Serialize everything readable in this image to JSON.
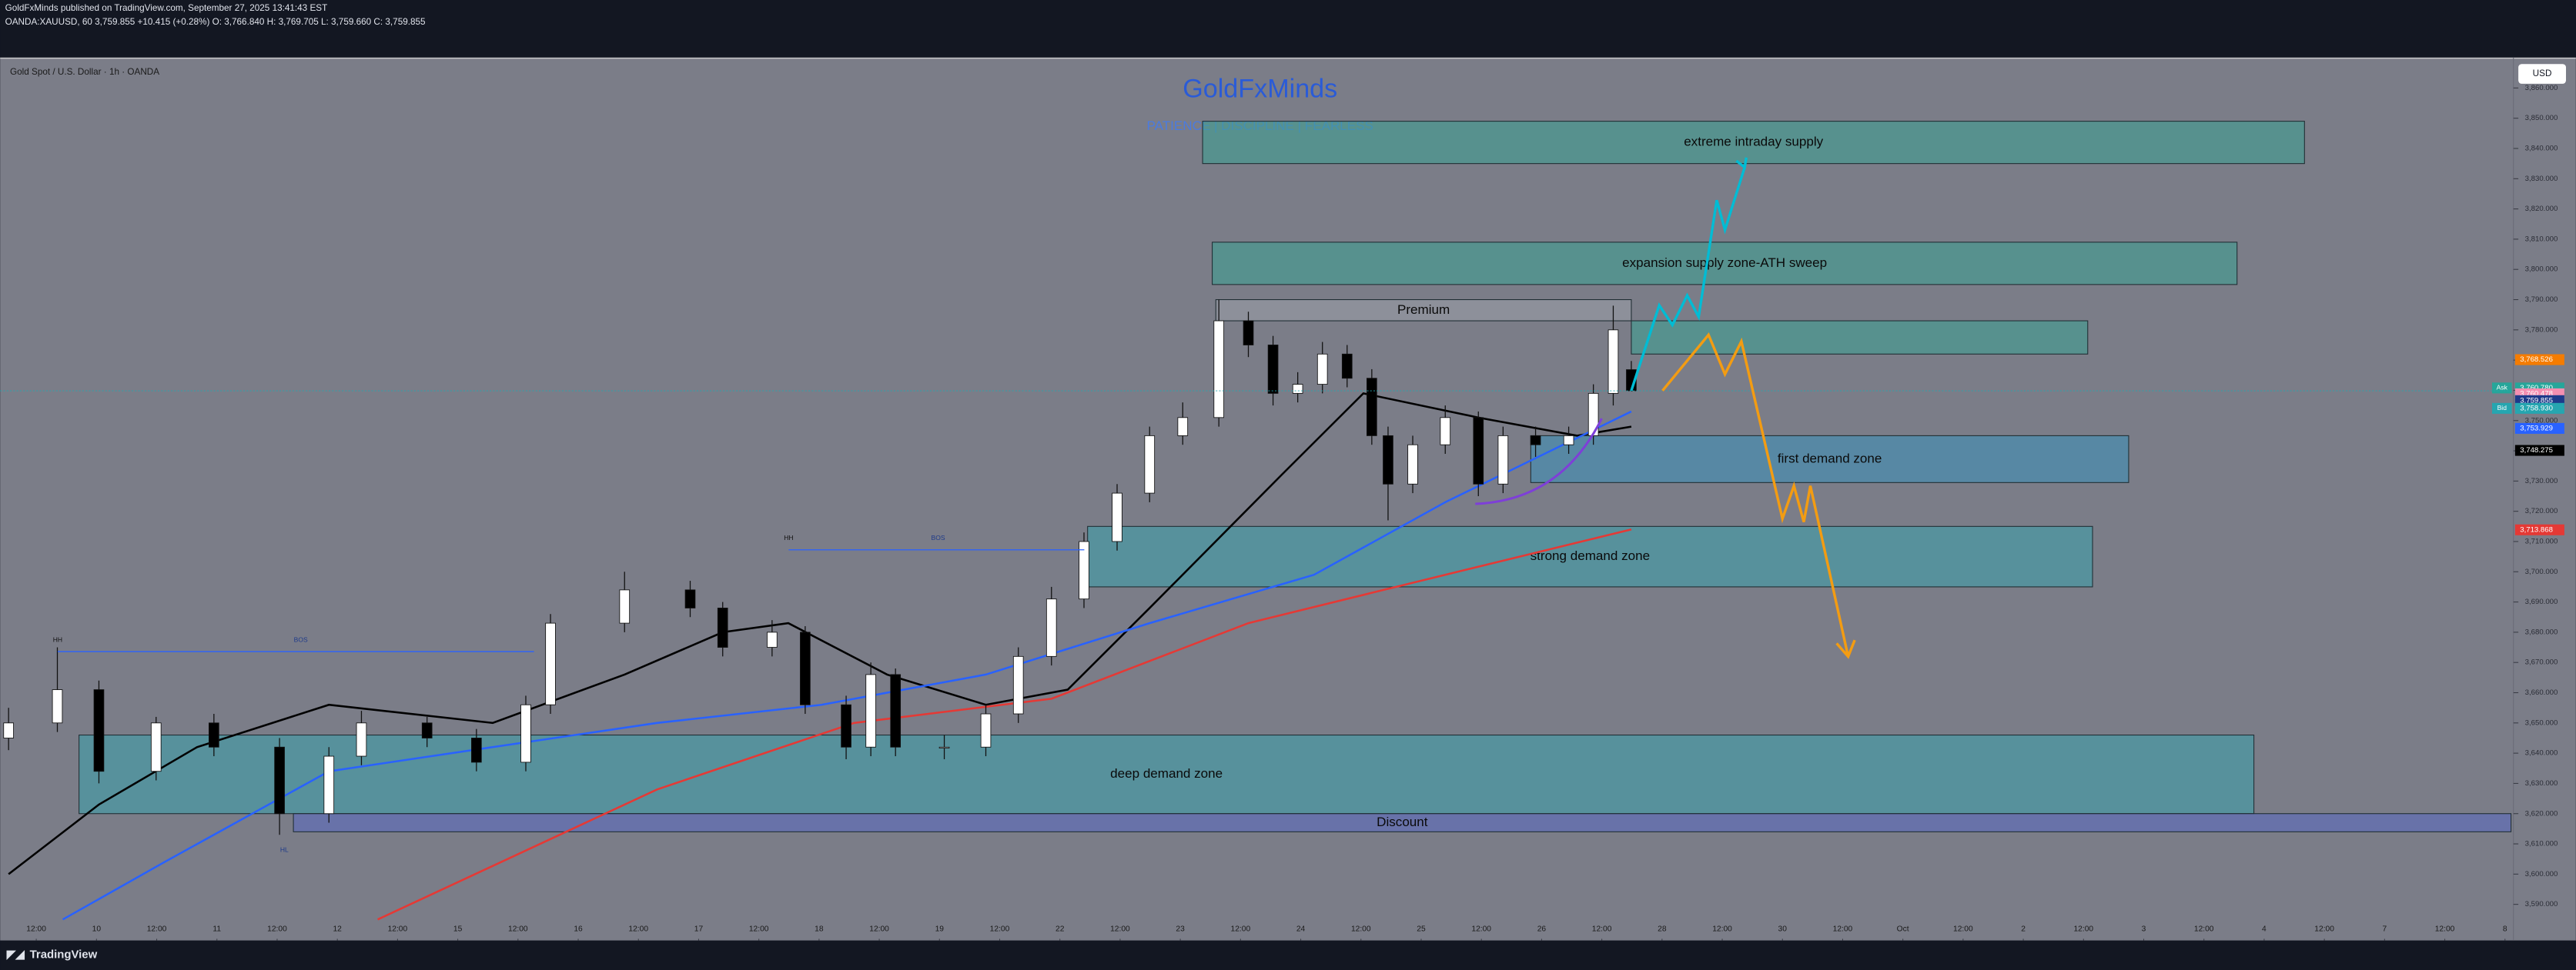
{
  "header": {
    "publisher": "GoldFxMinds published on TradingView.com, September 27, 2025 13:41:43 EST",
    "quote": "OANDA:XAUUSD, 60  3,759.855  +10.415 (+0.28%)  O: 3,766.840  H: 3,769.705  L: 3,759.660  C: 3,759.855",
    "symbol": "Gold Spot / U.S. Dollar · 1h · OANDA",
    "currency": "USD"
  },
  "footer": {
    "brand": "TradingView"
  },
  "chart_data": {
    "type": "candlestick",
    "title": "GoldFxMinds",
    "subtitle": "PATIENCE  |  DISCIPLINE  |  FEARLESS",
    "x": [
      -0.46,
      0.35,
      1.04,
      1.99,
      2.95,
      4.04,
      4.86,
      5.4,
      6.49,
      7.31,
      8.13,
      8.54,
      9.77,
      10.86,
      11.4,
      12.22,
      12.77,
      13.45,
      13.86,
      14.27,
      15.08,
      15.77,
      16.31,
      16.86,
      17.4,
      17.95,
      18.49,
      19.04,
      19.64,
      20.13,
      20.54,
      20.95,
      21.36,
      21.77,
      22.18,
      22.45,
      22.86,
      23.4,
      23.95,
      24.36,
      24.9,
      25.45,
      25.86,
      26.19,
      26.49
    ],
    "open": [
      3645,
      3650,
      3661,
      3634,
      3650,
      3642,
      3620,
      3639,
      3650,
      3645,
      3637,
      3656,
      3683,
      3694,
      3688,
      3675,
      3680,
      3656,
      3642,
      3666,
      3642,
      3642,
      3653,
      3672,
      3691,
      3710,
      3726,
      3745,
      3751,
      3783,
      3775,
      3759,
      3762,
      3772,
      3764,
      3745,
      3729,
      3742,
      3751,
      3729,
      3745,
      3742,
      3745,
      3759,
      3766.84
    ],
    "high": [
      3655,
      3675,
      3664,
      3652,
      3653,
      3645,
      3642,
      3654,
      3652,
      3648,
      3659,
      3686,
      3700,
      3697,
      3690,
      3684,
      3682,
      3659,
      3670,
      3668,
      3646,
      3656,
      3675,
      3695,
      3713,
      3729,
      3748,
      3756,
      3790,
      3786,
      3778,
      3766,
      3776,
      3775,
      3767,
      3748,
      3745,
      3755,
      3753,
      3748,
      3748,
      3748,
      3762,
      3788,
      3769.705
    ],
    "low": [
      3641,
      3647,
      3630,
      3631,
      3639,
      3613,
      3617,
      3636,
      3642,
      3634,
      3634,
      3653,
      3680,
      3685,
      3672,
      3672,
      3653,
      3638,
      3639,
      3639,
      3638,
      3639,
      3650,
      3669,
      3688,
      3707,
      3723,
      3742,
      3748,
      3771,
      3755,
      3756,
      3759,
      3761,
      3742,
      3717,
      3726,
      3739,
      3725,
      3726,
      3738,
      3739,
      3742,
      3755,
      3759.66
    ],
    "close": [
      3650,
      3661,
      3634,
      3650,
      3642,
      3620,
      3639,
      3650,
      3645,
      3637,
      3656,
      3683,
      3694,
      3688,
      3675,
      3680,
      3656,
      3642,
      3666,
      3642,
      3642,
      3653,
      3672,
      3691,
      3710,
      3726,
      3745,
      3751,
      3783,
      3775,
      3759,
      3762,
      3772,
      3764,
      3745,
      3729,
      3742,
      3751,
      3729,
      3745,
      3742,
      3745,
      3759,
      3780,
      3759.855
    ],
    "up_color": "#ffffff",
    "down_color": "#000000",
    "series": [
      {
        "color": "#000000",
        "x": [
          -0.46,
          1.04,
          2.67,
          4.86,
          7.58,
          9.77,
          11.4,
          12.49,
          14.13,
          15.77,
          17.13,
          18.49,
          20.68,
          22.04,
          23.95,
          25.59,
          26.49
        ],
        "values": [
          3600,
          3623,
          3642,
          3656,
          3650,
          3666,
          3680,
          3683,
          3666,
          3656,
          3661,
          3688,
          3732,
          3759,
          3751,
          3745,
          3748
        ]
      },
      {
        "color": "#2962ff",
        "x": [
          0.44,
          2.13,
          4.86,
          7.58,
          10.31,
          13.04,
          15.77,
          18.49,
          21.22,
          23.4,
          26.49
        ],
        "values": [
          3585,
          3604,
          3634,
          3642,
          3650,
          3656,
          3666,
          3683,
          3699,
          3723,
          3753
        ]
      },
      {
        "color": "#e53935",
        "x": [
          5.67,
          10.31,
          13.58,
          16.86,
          20.13,
          23.4,
          26.49
        ],
        "values": [
          3585,
          3628,
          3650,
          3658,
          3683,
          3699,
          3714
        ]
      }
    ],
    "zones": [
      {
        "label": "extreme intraday supply",
        "top": 3849,
        "bottom": 3835,
        "start": 19.37,
        "end": 37.67,
        "color": "#3f9e93"
      },
      {
        "label": "expansion supply zone-ATH sweep",
        "top": 3809,
        "bottom": 3795,
        "start": 19.53,
        "end": 36.55,
        "color": "#3f9e93"
      },
      {
        "label": "Premium",
        "top": 3790,
        "bottom": 3783,
        "start": 19.59,
        "end": 26.49,
        "color": "#9a9ca6"
      },
      {
        "top": 3783,
        "bottom": 3772,
        "start": 26.49,
        "end": 34.07,
        "color": "#3f9e93"
      },
      {
        "label": "first demand zone",
        "top": 3745,
        "bottom": 3729.5,
        "start": 24.82,
        "end": 34.75,
        "color": "#3f8fb8"
      },
      {
        "label": "strong demand zone",
        "top": 3715,
        "bottom": 3695,
        "start": 17.46,
        "end": 34.15,
        "color": "#3f9eaa"
      },
      {
        "label": "deep demand zone",
        "top": 3646,
        "bottom": 3620,
        "start": 0.71,
        "end": 36.83,
        "color": "#3f9eaa"
      },
      {
        "label": "Discount",
        "top": 3620,
        "bottom": 3614,
        "start": 4.27,
        "end": 41.1,
        "color": "#5c6bc0"
      }
    ],
    "price_labels": [
      {
        "value": 3768.526,
        "label": "3,768.526",
        "color": "#f57c00"
      },
      {
        "value": 3760.78,
        "label": "3,760.780",
        "color": "#26a69a",
        "tag": "Ask"
      },
      {
        "value": 3760.478,
        "label": "3,760.478",
        "color": "#f48fb1"
      },
      {
        "value": 3759.855,
        "label": "3,759.855",
        "color": "#1e3a8a"
      },
      {
        "value": 3758.93,
        "label": "3,758.930",
        "color": "#26a6b0",
        "tag": "Bid"
      },
      {
        "value": 3753.929,
        "label": "3,753.929",
        "color": "#2962ff"
      },
      {
        "value": 3748.275,
        "label": "3,748.275",
        "color": "#000000"
      },
      {
        "value": 3713.868,
        "label": "3,713.868",
        "color": "#e53935"
      }
    ],
    "ylim": [
      3578.6,
      3870.1
    ],
    "yticks": [
      {
        "value": 3590,
        "label": "3,590.000"
      },
      {
        "value": 3600,
        "label": "3,600.000"
      },
      {
        "value": 3610,
        "label": "3,610.000"
      },
      {
        "value": 3620,
        "label": "3,620.000"
      },
      {
        "value": 3630,
        "label": "3,630.000"
      },
      {
        "value": 3640,
        "label": "3,640.000"
      },
      {
        "value": 3650,
        "label": "3,650.000"
      },
      {
        "value": 3660,
        "label": "3,660.000"
      },
      {
        "value": 3670,
        "label": "3,670.000"
      },
      {
        "value": 3680,
        "label": "3,680.000"
      },
      {
        "value": 3690,
        "label": "3,690.000"
      },
      {
        "value": 3700,
        "label": "3,700.000"
      },
      {
        "value": 3710,
        "label": "3,710.000"
      },
      {
        "value": 3720,
        "label": "3,720.000"
      },
      {
        "value": 3730,
        "label": "3,730.000"
      },
      {
        "value": 3740,
        "label": "3,740.000"
      },
      {
        "value": 3750,
        "label": "3,750.000"
      },
      {
        "value": 3760,
        "label": "3,760.000"
      },
      {
        "value": 3770,
        "label": "3,770.000"
      },
      {
        "value": 3780,
        "label": "3,780.000"
      },
      {
        "value": 3790,
        "label": "3,790.000"
      },
      {
        "value": 3800,
        "label": "3,800.000"
      },
      {
        "value": 3810,
        "label": "3,810.000"
      },
      {
        "value": 3820,
        "label": "3,820.000"
      },
      {
        "value": 3830,
        "label": "3,830.000"
      },
      {
        "value": 3840,
        "label": "3,840.000"
      },
      {
        "value": 3850,
        "label": "3,850.000"
      },
      {
        "value": 3860,
        "label": "3,860.000"
      }
    ],
    "xlim": [
      -0.6,
      41.14
    ],
    "xticks": [
      {
        "value": 0,
        "label": "12:00"
      },
      {
        "value": 1,
        "label": "10"
      },
      {
        "value": 2,
        "label": "12:00"
      },
      {
        "value": 3,
        "label": "11"
      },
      {
        "value": 4,
        "label": "12:00"
      },
      {
        "value": 5,
        "label": "12"
      },
      {
        "value": 6,
        "label": "12:00"
      },
      {
        "value": 7,
        "label": "15"
      },
      {
        "value": 8,
        "label": "12:00"
      },
      {
        "value": 9,
        "label": "16"
      },
      {
        "value": 10,
        "label": "12:00"
      },
      {
        "value": 11,
        "label": "17"
      },
      {
        "value": 12,
        "label": "12:00"
      },
      {
        "value": 13,
        "label": "18"
      },
      {
        "value": 14,
        "label": "12:00"
      },
      {
        "value": 15,
        "label": "19"
      },
      {
        "value": 16,
        "label": "12:00"
      },
      {
        "value": 17,
        "label": "22"
      },
      {
        "value": 18,
        "label": "12:00"
      },
      {
        "value": 19,
        "label": "23"
      },
      {
        "value": 20,
        "label": "12:00"
      },
      {
        "value": 21,
        "label": "24"
      },
      {
        "value": 22,
        "label": "12:00"
      },
      {
        "value": 23,
        "label": "25"
      },
      {
        "value": 24,
        "label": "12:00"
      },
      {
        "value": 25,
        "label": "26"
      },
      {
        "value": 26,
        "label": "12:00"
      },
      {
        "value": 27,
        "label": "28"
      },
      {
        "value": 28,
        "label": "12:00"
      },
      {
        "value": 29,
        "label": "30"
      },
      {
        "value": 30,
        "label": "12:00"
      },
      {
        "value": 31,
        "label": "Oct"
      },
      {
        "value": 32,
        "label": "12:00"
      },
      {
        "value": 33,
        "label": "2"
      },
      {
        "value": 34,
        "label": "12:00"
      },
      {
        "value": 35,
        "label": "3"
      },
      {
        "value": 36,
        "label": "12:00"
      },
      {
        "value": 37,
        "label": "4"
      },
      {
        "value": 38,
        "label": "12:00"
      },
      {
        "value": 39,
        "label": "7"
      },
      {
        "value": 40,
        "label": "12:00"
      },
      {
        "value": 41,
        "label": "8"
      }
    ],
    "annotations": [
      "HH",
      "BOS",
      "HH",
      "BOS",
      "HL"
    ]
  }
}
